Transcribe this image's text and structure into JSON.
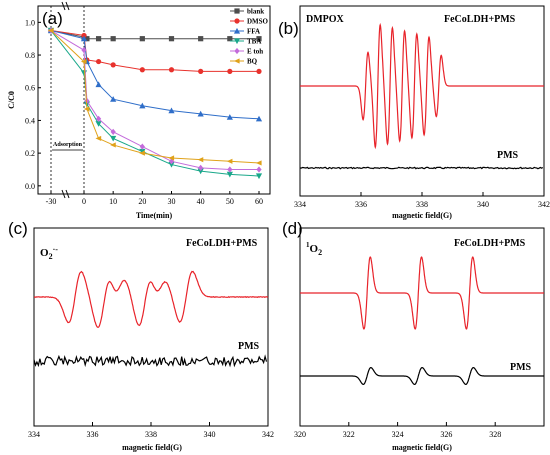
{
  "figure": {
    "panels": [
      {
        "id": "a",
        "label": "(a)"
      },
      {
        "id": "b",
        "label": "(b)"
      },
      {
        "id": "c",
        "label": "(c)"
      },
      {
        "id": "d",
        "label": "(d)"
      }
    ]
  },
  "chart_data": [
    {
      "panel": "a",
      "type": "line",
      "xlabel": "Time(min)",
      "ylabel": "C/C0",
      "x_ticks": [
        -30,
        0,
        10,
        20,
        30,
        40,
        50,
        60
      ],
      "y_ticks": [
        0.0,
        0.2,
        0.4,
        0.6,
        0.8,
        1.0
      ],
      "ylim": [
        -0.05,
        1.1
      ],
      "annotation": "Adsorption",
      "series": [
        {
          "name": "blank",
          "color": "#4d4d4d",
          "marker": "square",
          "x": [
            -30,
            0,
            1,
            5,
            10,
            20,
            30,
            40,
            50,
            60
          ],
          "y": [
            0.95,
            0.91,
            0.9,
            0.9,
            0.9,
            0.9,
            0.9,
            0.9,
            0.9,
            0.9
          ]
        },
        {
          "name": "DMSO",
          "color": "#e8322d",
          "marker": "circle",
          "x": [
            -30,
            0,
            1,
            5,
            10,
            20,
            30,
            40,
            50,
            60
          ],
          "y": [
            0.95,
            0.92,
            0.77,
            0.76,
            0.74,
            0.71,
            0.71,
            0.7,
            0.7,
            0.7
          ]
        },
        {
          "name": "FFA",
          "color": "#2f6ec9",
          "marker": "triangle",
          "x": [
            -30,
            0,
            1,
            5,
            10,
            20,
            30,
            40,
            50,
            60
          ],
          "y": [
            0.95,
            0.9,
            0.76,
            0.62,
            0.53,
            0.49,
            0.46,
            0.44,
            0.42,
            0.41
          ]
        },
        {
          "name": "TBA",
          "color": "#1aa88a",
          "marker": "triangle-down",
          "x": [
            -30,
            0,
            1,
            5,
            10,
            20,
            30,
            40,
            50,
            60
          ],
          "y": [
            0.95,
            0.69,
            0.5,
            0.38,
            0.29,
            0.21,
            0.13,
            0.09,
            0.07,
            0.06
          ]
        },
        {
          "name": "E toh",
          "color": "#c36bdb",
          "marker": "diamond",
          "x": [
            -30,
            0,
            1,
            5,
            10,
            20,
            30,
            40,
            50,
            60
          ],
          "y": [
            0.95,
            0.83,
            0.52,
            0.41,
            0.33,
            0.24,
            0.15,
            0.11,
            0.1,
            0.1
          ]
        },
        {
          "name": "BQ",
          "color": "#e0a21a",
          "marker": "triangle-left",
          "x": [
            -30,
            0,
            1,
            5,
            10,
            20,
            30,
            40,
            50,
            60
          ],
          "y": [
            0.95,
            0.76,
            0.47,
            0.29,
            0.25,
            0.2,
            0.17,
            0.16,
            0.15,
            0.14
          ]
        }
      ]
    },
    {
      "panel": "b",
      "type": "line",
      "xlabel": "magnetic field(G)",
      "x_ticks": [
        334,
        336,
        338,
        340,
        342
      ],
      "xlim": [
        334,
        342
      ],
      "title": "DMPOX",
      "labels": {
        "top": "FeCoLDH+PMS",
        "bottom": "PMS"
      },
      "spectrum": {
        "kind": "dmpox",
        "centers": [
          336.15,
          336.55,
          336.95,
          337.35,
          337.75,
          338.15,
          338.55
        ],
        "amps": [
          0.55,
          1.0,
          0.95,
          0.9,
          0.85,
          0.8,
          0.5
        ],
        "width": 0.08
      }
    },
    {
      "panel": "c",
      "type": "line",
      "xlabel": "magnetic field(G)",
      "x_ticks": [
        334,
        336,
        338,
        340,
        342
      ],
      "xlim": [
        334,
        342
      ],
      "title": "O2·-",
      "labels": {
        "top": "FeCoLDH+PMS",
        "bottom": "PMS"
      },
      "spectrum": {
        "kind": "superoxide",
        "centers": [
          335.4,
          336.4,
          336.9,
          337.8,
          338.3,
          339.2
        ],
        "amps": [
          0.85,
          1.0,
          0.55,
          0.95,
          0.5,
          0.85
        ],
        "width": 0.22
      }
    },
    {
      "panel": "d",
      "type": "line",
      "xlabel": "magnetic field(G)",
      "x_ticks": [
        320,
        322,
        324,
        326,
        328
      ],
      "xlim": [
        320,
        330
      ],
      "title": "1O2",
      "labels": {
        "top": "FeCoLDH+PMS",
        "bottom": "PMS"
      },
      "spectrum": {
        "kind": "singlet_oxygen",
        "centers": [
          322.75,
          324.85,
          326.95
        ],
        "amps": [
          1.0,
          1.0,
          1.0
        ],
        "width": 0.13
      }
    }
  ]
}
